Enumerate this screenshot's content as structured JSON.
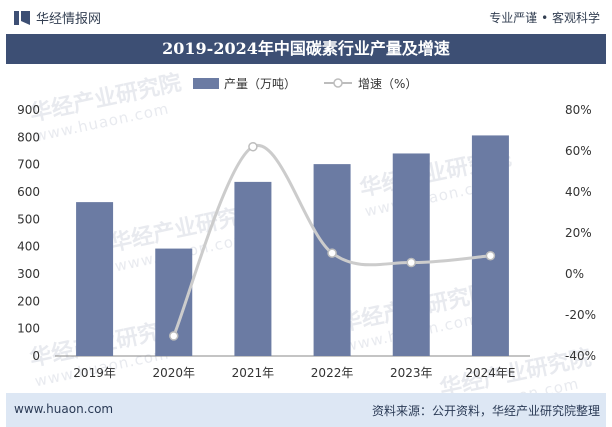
{
  "header": {
    "brand": "华经情报网",
    "motto": "专业严谨 • 客观科学",
    "title": "2019-2024年中国碳素行业产量及增速"
  },
  "footer": {
    "url": "www.huaon.com",
    "source": "资料来源：公开资料，华经产业研究院整理"
  },
  "watermark": {
    "name": "华经产业研究院",
    "url": "www.huaon.com"
  },
  "colors": {
    "bar": "#6b7ba3",
    "line": "#cccccc",
    "title_bg": "#3d4f74",
    "footer_bg": "#dde7f4"
  },
  "chart_data": {
    "type": "bar+line",
    "title": "2019-2024年中国碳素行业产量及增速",
    "categories": [
      "2019年",
      "2020年",
      "2021年",
      "2022年",
      "2023年",
      "2024年E"
    ],
    "series": [
      {
        "name": "产量（万吨）",
        "type": "bar",
        "axis": "left",
        "values": [
          563,
          393,
          637,
          702,
          741,
          807
        ]
      },
      {
        "name": "增速（%）",
        "type": "line",
        "axis": "right",
        "values": [
          null,
          -30.2,
          62.1,
          10.2,
          5.6,
          8.9
        ]
      }
    ],
    "y_left": {
      "min": 0,
      "max": 900,
      "step": 100,
      "ticks": [
        "0",
        "100",
        "200",
        "300",
        "400",
        "500",
        "600",
        "700",
        "800",
        "900"
      ]
    },
    "y_right": {
      "min": -40,
      "max": 80,
      "step": 20,
      "ticks": [
        "-40%",
        "-20%",
        "0%",
        "20%",
        "40%",
        "60%",
        "80%"
      ]
    },
    "legend": [
      "产量（万吨）",
      "增速（%）"
    ],
    "legend_position": "top-center"
  }
}
